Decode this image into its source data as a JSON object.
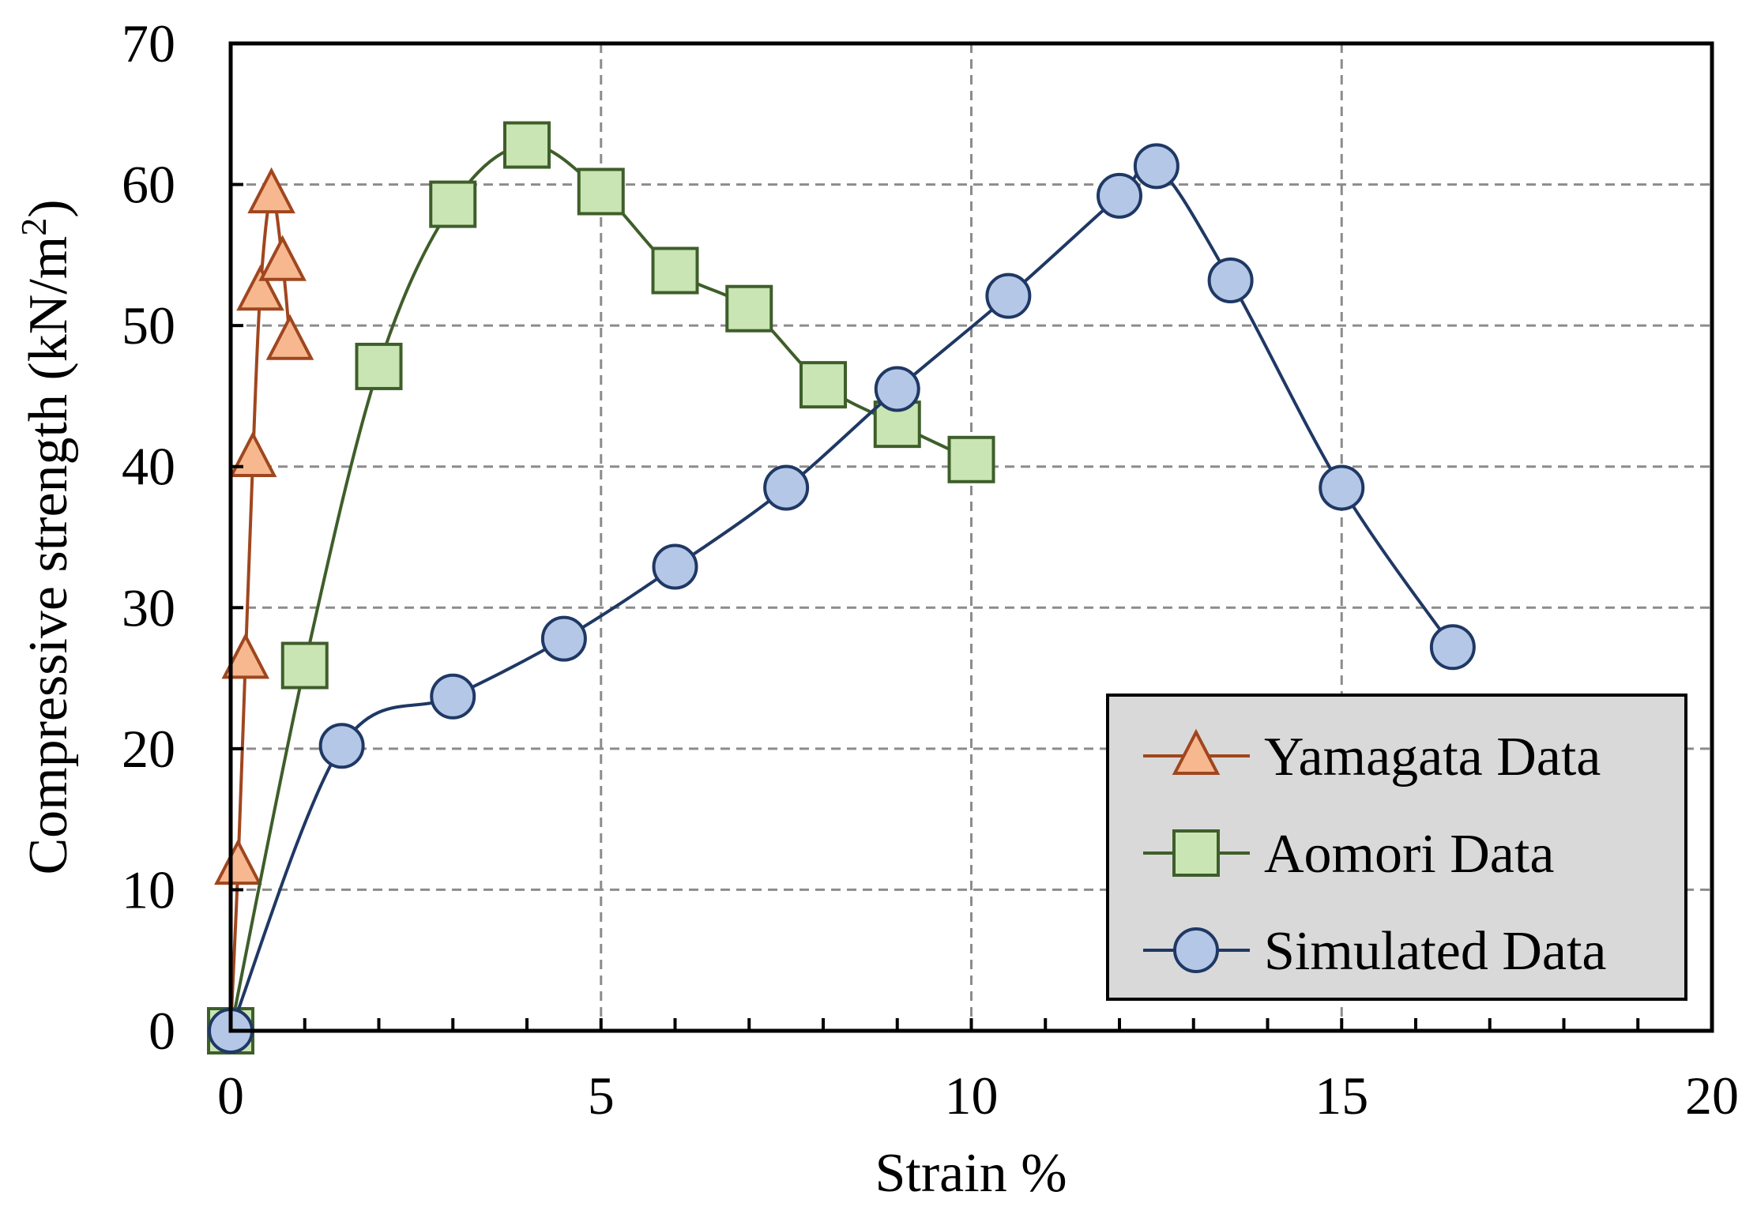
{
  "chart_data": {
    "type": "line",
    "title": "",
    "xlabel": "Strain %",
    "ylabel_main": "Compressive strength  (kN/m",
    "ylabel_sup": "2",
    "ylabel_close": ")",
    "xlim": [
      0,
      20
    ],
    "ylim": [
      0,
      70
    ],
    "x_ticks": [
      0,
      5,
      10,
      15,
      20
    ],
    "x_minor_step": 1,
    "y_ticks": [
      0,
      10,
      20,
      30,
      40,
      50,
      60,
      70
    ],
    "grid": true,
    "legend_position": "bottom-right",
    "series": [
      {
        "name": "Yamagata Data",
        "marker": "triangle",
        "line_color": "#a0461e",
        "marker_fill": "#f7b890",
        "marker_stroke": "#a0461e",
        "x": [
          0,
          0.1,
          0.2,
          0.3,
          0.4,
          0.55,
          0.7,
          0.8
        ],
        "y": [
          0,
          11.7,
          26.3,
          40.6,
          52.4,
          59.3,
          54.5,
          48.9
        ]
      },
      {
        "name": "Aomori Data",
        "marker": "square",
        "line_color": "#3e5e2a",
        "marker_fill": "#c9e5b3",
        "marker_stroke": "#3e5e2a",
        "x": [
          0,
          1,
          2,
          3,
          4,
          5,
          6,
          7,
          8,
          9,
          10
        ],
        "y": [
          0,
          25.9,
          47.1,
          58.6,
          62.8,
          59.5,
          53.9,
          51.2,
          45.8,
          43.0,
          40.5
        ]
      },
      {
        "name": "Simulated Data",
        "marker": "circle",
        "line_color": "#1f3864",
        "marker_fill": "#b4c7e7",
        "marker_stroke": "#1f3864",
        "x": [
          0,
          1.5,
          3,
          4.5,
          6,
          7.5,
          9,
          10.5,
          12,
          12.5,
          13.5,
          15,
          16.5
        ],
        "y": [
          0,
          20.2,
          23.7,
          27.8,
          32.9,
          38.5,
          45.5,
          52.1,
          59.2,
          61.3,
          53.2,
          38.5,
          27.2
        ]
      }
    ]
  }
}
